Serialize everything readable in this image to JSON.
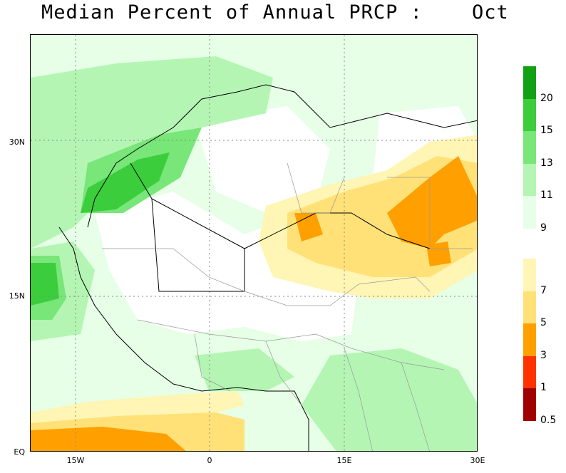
{
  "title": "Median Percent of Annual PRCP :    Oct",
  "axes": {
    "lat_ticks": [
      {
        "label": "30N",
        "value": 30
      },
      {
        "label": "15N",
        "value": 15
      },
      {
        "label": "EQ",
        "value": 0
      }
    ],
    "lon_ticks": [
      {
        "label": "15W",
        "value": -15
      },
      {
        "label": "0",
        "value": 0
      },
      {
        "label": "15E",
        "value": 15
      },
      {
        "label": "30E",
        "value": 30
      }
    ],
    "lat_range": [
      0,
      40
    ],
    "lon_range": [
      -20,
      30
    ],
    "gridlines": "dotted"
  },
  "legend": {
    "upper": {
      "colors": [
        "#14a014",
        "#3ccd3c",
        "#78e678",
        "#b4f5b4",
        "#e6ffe6"
      ],
      "labels": [
        "20",
        "15",
        "13",
        "11",
        "9"
      ]
    },
    "lower": {
      "colors": [
        "#fff5b4",
        "#ffe178",
        "#ffa000",
        "#ff3200",
        "#a00000"
      ],
      "labels": [
        "7",
        "5",
        "3",
        "1",
        "0.5"
      ]
    }
  }
}
